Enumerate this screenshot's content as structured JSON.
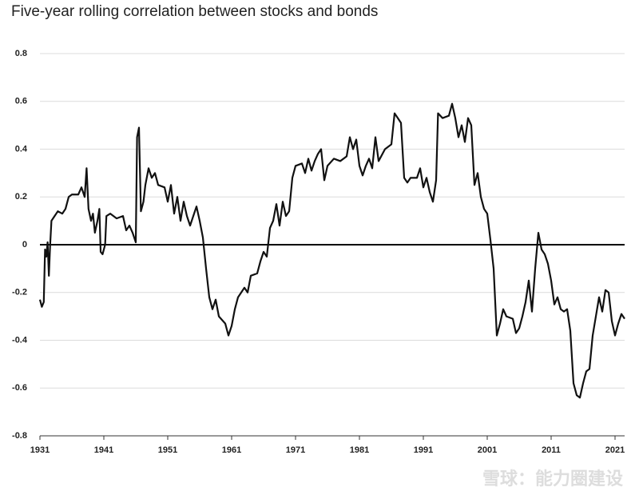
{
  "chart_data": {
    "type": "line",
    "title": "Five-year rolling correlation between stocks and bonds",
    "watermark": "雪球：能力圈建设",
    "x": [
      1931.0,
      1931.3,
      1931.6,
      1931.8,
      1932.0,
      1932.2,
      1932.4,
      1932.6,
      1932.8,
      1933.3,
      1933.8,
      1934.5,
      1935,
      1935.5,
      1936,
      1937,
      1937.5,
      1938,
      1938.3,
      1938.6,
      1939,
      1939.3,
      1939.6,
      1940,
      1940.3,
      1940.5,
      1940.8,
      1941.2,
      1941.4,
      1942,
      1943,
      1944,
      1944.5,
      1945,
      1945.5,
      1946,
      1946.2,
      1946.5,
      1946.8,
      1947.2,
      1947.5,
      1948,
      1948.5,
      1949,
      1949.5,
      1950.5,
      1951,
      1951.5,
      1952,
      1952.5,
      1953,
      1953.5,
      1954,
      1954.5,
      1955,
      1955.5,
      1956,
      1956.5,
      1957,
      1957.5,
      1958,
      1958.5,
      1959,
      1960,
      1960.5,
      1961,
      1961.5,
      1962,
      1963,
      1963.5,
      1964,
      1965,
      1965.5,
      1966,
      1966.5,
      1967,
      1967.5,
      1968,
      1968.5,
      1969,
      1969.5,
      1970,
      1970.5,
      1971,
      1972,
      1972.5,
      1973,
      1973.5,
      1974,
      1974.5,
      1975,
      1975.5,
      1976,
      1977,
      1978,
      1979,
      1979.5,
      1980,
      1980.5,
      1981,
      1981.5,
      1982,
      1982.5,
      1983,
      1983.5,
      1984,
      1985,
      1986,
      1986.5,
      1987,
      1987.5,
      1988,
      1988.5,
      1989,
      1990,
      1990.5,
      1991,
      1991.5,
      1992,
      1992.5,
      1993,
      1993.3,
      1994,
      1995,
      1995.5,
      1996,
      1996.5,
      1997,
      1997.5,
      1998,
      1998.5,
      1999,
      1999.5,
      2000,
      2000.5,
      2001,
      2001.5,
      2002,
      2002.5,
      2003,
      2003.5,
      2004,
      2005,
      2005.5,
      2006,
      2006.5,
      2007,
      2007.5,
      2008,
      2008.5,
      2009,
      2009.5,
      2010,
      2010.5,
      2011,
      2011.5,
      2012,
      2012.5,
      2013,
      2013.5,
      2014,
      2014.5,
      2015,
      2015.5,
      2016,
      2016.5,
      2017,
      2017.5,
      2018,
      2018.5,
      2019,
      2019.5,
      2020,
      2020.5,
      2021,
      2021.5,
      2022,
      2022.5
    ],
    "series": [
      {
        "name": "Correlation",
        "color": "#111111",
        "values": [
          -0.23,
          -0.26,
          -0.24,
          -0.02,
          -0.05,
          0.01,
          -0.13,
          0.0,
          0.1,
          0.12,
          0.14,
          0.13,
          0.15,
          0.2,
          0.21,
          0.21,
          0.24,
          0.2,
          0.32,
          0.15,
          0.1,
          0.13,
          0.05,
          0.1,
          0.15,
          -0.03,
          -0.04,
          0.0,
          0.12,
          0.13,
          0.11,
          0.12,
          0.06,
          0.08,
          0.05,
          0.01,
          0.45,
          0.49,
          0.14,
          0.18,
          0.25,
          0.32,
          0.28,
          0.3,
          0.25,
          0.24,
          0.18,
          0.25,
          0.13,
          0.2,
          0.1,
          0.18,
          0.12,
          0.08,
          0.12,
          0.16,
          0.1,
          0.03,
          -0.1,
          -0.22,
          -0.27,
          -0.23,
          -0.3,
          -0.33,
          -0.38,
          -0.34,
          -0.27,
          -0.22,
          -0.18,
          -0.2,
          -0.13,
          -0.12,
          -0.07,
          -0.03,
          -0.05,
          0.07,
          0.1,
          0.17,
          0.08,
          0.18,
          0.12,
          0.14,
          0.28,
          0.33,
          0.34,
          0.3,
          0.36,
          0.31,
          0.35,
          0.38,
          0.4,
          0.27,
          0.33,
          0.36,
          0.35,
          0.37,
          0.45,
          0.4,
          0.44,
          0.33,
          0.29,
          0.33,
          0.36,
          0.32,
          0.45,
          0.35,
          0.4,
          0.42,
          0.55,
          0.53,
          0.51,
          0.28,
          0.26,
          0.28,
          0.28,
          0.32,
          0.24,
          0.28,
          0.22,
          0.18,
          0.27,
          0.55,
          0.53,
          0.54,
          0.59,
          0.53,
          0.45,
          0.5,
          0.43,
          0.53,
          0.5,
          0.25,
          0.3,
          0.2,
          0.15,
          0.13,
          0.02,
          -0.1,
          -0.38,
          -0.33,
          -0.27,
          -0.3,
          -0.31,
          -0.37,
          -0.35,
          -0.3,
          -0.24,
          -0.15,
          -0.28,
          -0.1,
          0.05,
          -0.02,
          -0.04,
          -0.08,
          -0.15,
          -0.25,
          -0.22,
          -0.27,
          -0.28,
          -0.27,
          -0.36,
          -0.58,
          -0.63,
          -0.64,
          -0.58,
          -0.53,
          -0.52,
          -0.38,
          -0.3,
          -0.22,
          -0.28,
          -0.19,
          -0.2,
          -0.32,
          -0.38,
          -0.33,
          -0.29,
          -0.31
        ]
      }
    ],
    "xlim": [
      1931,
      2022.5
    ],
    "xticks": [
      1931,
      1941,
      1951,
      1961,
      1971,
      1981,
      1991,
      2001,
      2011,
      2021
    ],
    "ylim": [
      -0.8,
      0.8
    ],
    "yticks": [
      -0.8,
      -0.6,
      -0.4,
      -0.2,
      0,
      0.2,
      0.4,
      0.6,
      0.8
    ],
    "zero_line": 0,
    "grid": true
  }
}
